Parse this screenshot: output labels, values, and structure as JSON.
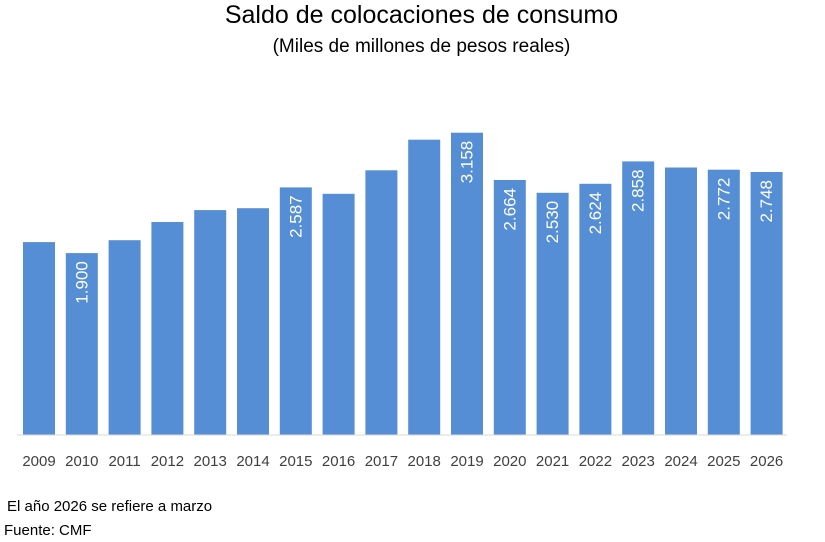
{
  "chart_data": {
    "type": "bar",
    "title": "Saldo de colocaciones de consumo",
    "subtitle": "(Miles de millones de pesos reales)",
    "categories": [
      "2009",
      "2010",
      "2011",
      "2012",
      "2013",
      "2014",
      "2015",
      "2016",
      "2017",
      "2018",
      "2019",
      "2020",
      "2021",
      "2022",
      "2023",
      "2024",
      "2025",
      "2026"
    ],
    "values": [
      2015,
      1900,
      2035,
      2225,
      2350,
      2370,
      2587,
      2520,
      2765,
      3085,
      3158,
      2664,
      2530,
      2624,
      2858,
      2795,
      2772,
      2748
    ],
    "data_labels": [
      "",
      "1.900",
      "",
      "",
      "",
      "",
      "2.587",
      "",
      "",
      "",
      "3.158",
      "2.664",
      "2.530",
      "2.624",
      "2.858",
      "",
      "2.772",
      "2.748"
    ],
    "ylim": [
      0,
      3500
    ],
    "grid": false,
    "bar_color": "#558ED5"
  },
  "notes": {
    "period": "El año 2026 se refiere a marzo",
    "source": "Fuente: CMF"
  }
}
